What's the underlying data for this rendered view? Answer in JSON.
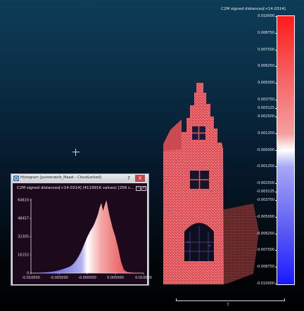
{
  "scale": {
    "title": "C2M signed distances[<14.0314]",
    "ticks": [
      "0.010000",
      "0.008750",
      "0.007500",
      "0.006250",
      "0.005000",
      "0.003750",
      "0.003125",
      "0.002500",
      "0.001250",
      "-0.000000",
      "-0.001250",
      "-0.002500",
      "-0.003125",
      "-0.003750",
      "-0.005000",
      "-0.006250",
      "-0.007500",
      "-0.008750",
      "-0.010000"
    ],
    "tick_values": [
      0.01,
      0.00875,
      0.0075,
      0.00625,
      0.005,
      0.00375,
      0.003125,
      0.0025,
      0.00125,
      0,
      -0.00125,
      -0.0025,
      -0.003125,
      -0.00375,
      -0.005,
      -0.00625,
      -0.0075,
      -0.00875,
      -0.01
    ],
    "colors": {
      "max": "#ff1a1a",
      "mid": "#ffffff",
      "min": "#1a1aff"
    }
  },
  "metric_bar": {
    "label": "7"
  },
  "histogram": {
    "title": "Histogram [puntenwolk_Maast - CloudLocked]",
    "help_label": "?",
    "close_label": "X",
    "header": "C2M signed distances[<14.0314] (4119916 values) [256 c...",
    "buttons": [
      "−",
      "+"
    ],
    "colors": {
      "background": "#1c0a1c",
      "axis": "#e6d8e6"
    }
  },
  "chart_data": {
    "type": "area",
    "x": [
      -0.01,
      -0.009,
      -0.008,
      -0.007,
      -0.006,
      -0.005,
      -0.004,
      -0.003,
      -0.0025,
      -0.002,
      -0.0015,
      -0.001,
      -0.0005,
      0.0,
      0.0005,
      0.001,
      0.0013,
      0.0016,
      0.0019,
      0.0022,
      0.0025,
      0.0028,
      0.0031,
      0.0034,
      0.0037,
      0.004,
      0.0045,
      0.005,
      0.0055,
      0.006,
      0.0065,
      0.007,
      0.008,
      0.009,
      0.01
    ],
    "y": [
      0,
      200,
      500,
      900,
      1500,
      2500,
      4000,
      6000,
      8000,
      11000,
      15000,
      20000,
      26000,
      32000,
      37000,
      41000,
      44000,
      48000,
      52000,
      58000,
      62000,
      55000,
      60000,
      64610,
      57000,
      50000,
      40000,
      32000,
      22000,
      10000,
      3000,
      1200,
      400,
      100,
      0
    ],
    "xlim": [
      -0.01,
      0.01
    ],
    "ylim": [
      0,
      64610
    ],
    "xticks": [
      -0.01,
      -0.005,
      0.0,
      0.005,
      0.01
    ],
    "xtick_labels": [
      "-0.010000",
      "-0.005000",
      "-0.000000",
      "0.005000",
      "0.010000"
    ],
    "yticks": [
      0,
      16152,
      32305,
      48457,
      64610
    ],
    "ytick_labels": [
      "0",
      "16152",
      "32305",
      "48457",
      "64610"
    ]
  }
}
